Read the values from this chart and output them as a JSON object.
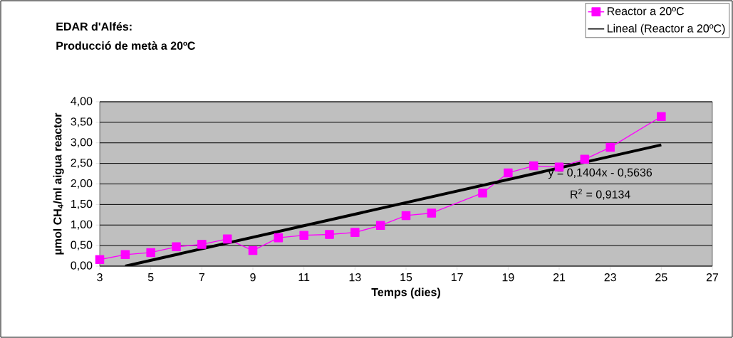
{
  "chart_data": {
    "type": "line",
    "title": "EDAR d'Alfés:",
    "subtitle": "Producció de metà a 20ºC",
    "xlabel": "Temps (dies)",
    "ylabel": "µmol CH$_{4}$/ml aigua reactor",
    "series": [
      {
        "name": "Reactor a 20ºC",
        "color": "#ff00ff",
        "marker": "square",
        "x": [
          3,
          4,
          5,
          6,
          7,
          8,
          9,
          10,
          11,
          12,
          13,
          14,
          15,
          16,
          18,
          19,
          20,
          21,
          22,
          23,
          25
        ],
        "values": [
          0.16,
          0.28,
          0.33,
          0.47,
          0.53,
          0.66,
          0.38,
          0.69,
          0.75,
          0.77,
          0.82,
          0.99,
          1.23,
          1.29,
          1.78,
          2.27,
          2.44,
          2.41,
          2.6,
          2.89,
          3.64
        ]
      },
      {
        "name": "Lineal (Reactor a 20ºC)",
        "color": "#000000",
        "marker": "none",
        "x": [
          4,
          25
        ],
        "values": [
          0,
          2.95
        ]
      }
    ],
    "annotations": [
      "y = 0,1404x - 0,5636",
      "R$^{2}$ = 0,9134"
    ],
    "xlim": [
      3,
      27
    ],
    "xticks": [
      3,
      5,
      7,
      9,
      11,
      13,
      15,
      17,
      19,
      21,
      23,
      25,
      27
    ],
    "ylim": [
      0,
      4
    ],
    "yticks": [
      {
        "value": 0,
        "label": "0,00"
      },
      {
        "value": 0.5,
        "label": "0,50"
      },
      {
        "value": 1,
        "label": "1,00"
      },
      {
        "value": 1.5,
        "label": "1,50"
      },
      {
        "value": 2,
        "label": "2,00"
      },
      {
        "value": 2.5,
        "label": "2,50"
      },
      {
        "value": 3,
        "label": "3,00"
      },
      {
        "value": 3.5,
        "label": "3,50"
      },
      {
        "value": 4,
        "label": "4,00"
      }
    ],
    "grid": "y",
    "legend": "top right",
    "line_style": "solid"
  }
}
